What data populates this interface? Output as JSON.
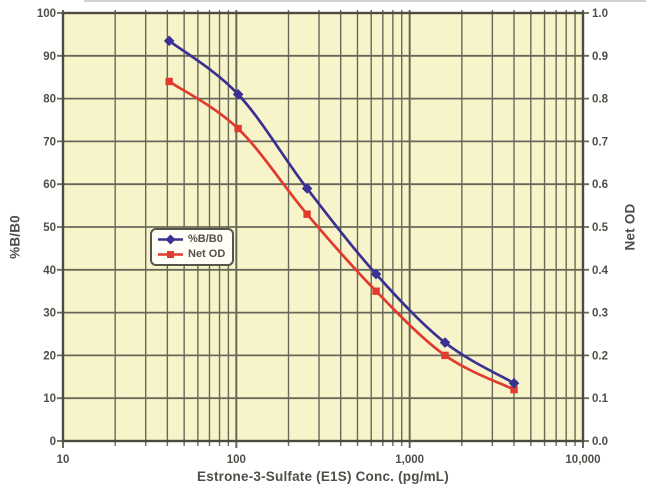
{
  "figure": {
    "background": "#ffffff",
    "plot_background": "#f8f4c9",
    "grid_color": "#68685a",
    "border_color": "#4b4b40",
    "text_color": "#4f4f49"
  },
  "axes": {
    "x_title": "Estrone-3-Sulfate (E1S) Conc. (pg/mL)",
    "y_left_title": "%B/B0",
    "y_right_title": "Net OD",
    "x_ticks": [
      "10",
      "100",
      "1,000",
      "10,000"
    ],
    "y_left_ticks": [
      "0",
      "10",
      "20",
      "30",
      "40",
      "50",
      "60",
      "70",
      "80",
      "90",
      "100"
    ],
    "y_right_ticks": [
      "0.0",
      "0.1",
      "0.2",
      "0.3",
      "0.4",
      "0.5",
      "0.6",
      "0.7",
      "0.8",
      "0.9",
      "1.0"
    ]
  },
  "legend": {
    "items": [
      {
        "label": "%B/B0",
        "color": "#3a3192",
        "marker": "diamond"
      },
      {
        "label": "Net OD",
        "color": "#e13a2e",
        "marker": "square"
      }
    ]
  },
  "chart_data": {
    "type": "line",
    "x_scale": "log",
    "x": [
      40.96,
      102.4,
      256,
      640,
      1600,
      4000
    ],
    "xlim": [
      10,
      10000
    ],
    "xlabel": "Estrone-3-Sulfate (E1S) Conc. (pg/mL)",
    "ylabel_left": "%B/B0",
    "ylabel_right": "Net OD",
    "ylim_left": [
      0,
      100
    ],
    "ylim_right": [
      0.0,
      1.0
    ],
    "grid": true,
    "legend_position": "inside-left-middle",
    "series": [
      {
        "name": "%B/B0",
        "axis": "left",
        "color": "#3a3192",
        "marker": "diamond",
        "values": [
          93.5,
          81,
          59,
          39,
          23,
          13.5
        ]
      },
      {
        "name": "Net OD",
        "axis": "right",
        "color": "#e13a2e",
        "marker": "square",
        "values": [
          0.84,
          0.73,
          0.53,
          0.35,
          0.2,
          0.12
        ]
      }
    ]
  }
}
